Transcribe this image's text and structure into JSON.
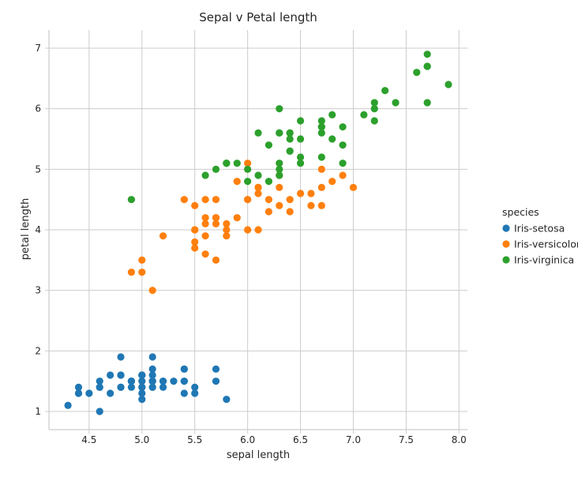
{
  "chart_data": {
    "type": "scatter",
    "title": "Sepal v Petal length",
    "xlabel": "sepal length",
    "ylabel": "petal length",
    "xlim": [
      4.12,
      8.08
    ],
    "ylim": [
      0.7,
      7.3
    ],
    "xticks": [
      4.5,
      5.0,
      5.5,
      6.0,
      6.5,
      7.0,
      7.5,
      8.0
    ],
    "xtick_labels": [
      "4.5",
      "5.0",
      "5.5",
      "6.0",
      "6.5",
      "7.0",
      "7.5",
      "8.0"
    ],
    "yticks": [
      1,
      2,
      3,
      4,
      5,
      6,
      7
    ],
    "ytick_labels": [
      "1",
      "2",
      "3",
      "4",
      "5",
      "6",
      "7"
    ],
    "grid": true,
    "legend": {
      "title": "species",
      "placement": "right"
    },
    "series": [
      {
        "name": "Iris-setosa",
        "color": "#1f77b4",
        "points": [
          [
            5.1,
            1.4
          ],
          [
            4.9,
            1.4
          ],
          [
            4.7,
            1.3
          ],
          [
            4.6,
            1.5
          ],
          [
            5.0,
            1.4
          ],
          [
            5.4,
            1.7
          ],
          [
            4.6,
            1.4
          ],
          [
            5.0,
            1.5
          ],
          [
            4.4,
            1.4
          ],
          [
            4.9,
            1.5
          ],
          [
            5.4,
            1.5
          ],
          [
            4.8,
            1.6
          ],
          [
            4.8,
            1.4
          ],
          [
            4.3,
            1.1
          ],
          [
            5.8,
            1.2
          ],
          [
            5.7,
            1.5
          ],
          [
            5.4,
            1.3
          ],
          [
            5.1,
            1.4
          ],
          [
            5.7,
            1.7
          ],
          [
            5.1,
            1.5
          ],
          [
            5.4,
            1.7
          ],
          [
            5.1,
            1.5
          ],
          [
            4.6,
            1.0
          ],
          [
            5.1,
            1.7
          ],
          [
            4.8,
            1.9
          ],
          [
            5.0,
            1.6
          ],
          [
            5.0,
            1.6
          ],
          [
            5.2,
            1.5
          ],
          [
            5.2,
            1.4
          ],
          [
            4.7,
            1.6
          ],
          [
            4.8,
            1.6
          ],
          [
            5.4,
            1.5
          ],
          [
            5.2,
            1.5
          ],
          [
            5.5,
            1.4
          ],
          [
            4.9,
            1.5
          ],
          [
            5.0,
            1.2
          ],
          [
            5.5,
            1.3
          ],
          [
            4.9,
            1.5
          ],
          [
            4.4,
            1.3
          ],
          [
            5.1,
            1.5
          ],
          [
            5.0,
            1.3
          ],
          [
            4.5,
            1.3
          ],
          [
            4.4,
            1.3
          ],
          [
            5.0,
            1.6
          ],
          [
            5.1,
            1.9
          ],
          [
            4.8,
            1.4
          ],
          [
            5.1,
            1.6
          ],
          [
            4.6,
            1.4
          ],
          [
            5.3,
            1.5
          ],
          [
            5.0,
            1.4
          ]
        ]
      },
      {
        "name": "Iris-versicolor",
        "color": "#ff7f0e",
        "points": [
          [
            7.0,
            4.7
          ],
          [
            6.4,
            4.5
          ],
          [
            6.9,
            4.9
          ],
          [
            5.5,
            4.0
          ],
          [
            6.5,
            4.6
          ],
          [
            5.7,
            4.5
          ],
          [
            6.3,
            4.7
          ],
          [
            4.9,
            3.3
          ],
          [
            6.6,
            4.6
          ],
          [
            5.2,
            3.9
          ],
          [
            5.0,
            3.5
          ],
          [
            5.9,
            4.2
          ],
          [
            6.0,
            4.0
          ],
          [
            6.1,
            4.7
          ],
          [
            5.6,
            3.6
          ],
          [
            6.7,
            4.4
          ],
          [
            5.6,
            4.5
          ],
          [
            5.8,
            4.1
          ],
          [
            6.2,
            4.5
          ],
          [
            5.6,
            3.9
          ],
          [
            5.9,
            4.8
          ],
          [
            6.1,
            4.0
          ],
          [
            6.3,
            4.9
          ],
          [
            6.1,
            4.7
          ],
          [
            6.4,
            4.3
          ],
          [
            6.6,
            4.4
          ],
          [
            6.8,
            4.8
          ],
          [
            6.7,
            5.0
          ],
          [
            6.0,
            4.5
          ],
          [
            5.7,
            3.5
          ],
          [
            5.5,
            3.8
          ],
          [
            5.5,
            3.7
          ],
          [
            5.8,
            3.9
          ],
          [
            6.0,
            5.1
          ],
          [
            5.4,
            4.5
          ],
          [
            6.0,
            4.5
          ],
          [
            6.7,
            4.7
          ],
          [
            6.3,
            4.4
          ],
          [
            5.6,
            4.1
          ],
          [
            5.5,
            4.0
          ],
          [
            5.5,
            4.4
          ],
          [
            6.1,
            4.6
          ],
          [
            5.8,
            4.0
          ],
          [
            5.0,
            3.3
          ],
          [
            5.6,
            4.2
          ],
          [
            5.7,
            4.2
          ],
          [
            5.7,
            4.2
          ],
          [
            6.2,
            4.3
          ],
          [
            5.1,
            3.0
          ],
          [
            5.7,
            4.1
          ]
        ]
      },
      {
        "name": "Iris-virginica",
        "color": "#2ca02c",
        "points": [
          [
            6.3,
            6.0
          ],
          [
            5.8,
            5.1
          ],
          [
            7.1,
            5.9
          ],
          [
            6.3,
            5.6
          ],
          [
            6.5,
            5.8
          ],
          [
            7.6,
            6.6
          ],
          [
            4.9,
            4.5
          ],
          [
            7.3,
            6.3
          ],
          [
            6.7,
            5.8
          ],
          [
            7.2,
            6.1
          ],
          [
            6.5,
            5.1
          ],
          [
            6.4,
            5.3
          ],
          [
            6.8,
            5.5
          ],
          [
            5.7,
            5.0
          ],
          [
            5.8,
            5.1
          ],
          [
            6.4,
            5.3
          ],
          [
            6.5,
            5.5
          ],
          [
            7.7,
            6.7
          ],
          [
            7.7,
            6.9
          ],
          [
            6.0,
            5.0
          ],
          [
            6.9,
            5.7
          ],
          [
            5.6,
            4.9
          ],
          [
            7.7,
            6.7
          ],
          [
            6.3,
            4.9
          ],
          [
            6.7,
            5.7
          ],
          [
            7.2,
            6.0
          ],
          [
            6.2,
            4.8
          ],
          [
            6.1,
            4.9
          ],
          [
            6.4,
            5.6
          ],
          [
            7.2,
            5.8
          ],
          [
            7.4,
            6.1
          ],
          [
            7.9,
            6.4
          ],
          [
            6.4,
            5.6
          ],
          [
            6.3,
            5.1
          ],
          [
            6.1,
            5.6
          ],
          [
            7.7,
            6.1
          ],
          [
            6.3,
            5.6
          ],
          [
            6.4,
            5.5
          ],
          [
            6.0,
            4.8
          ],
          [
            6.9,
            5.4
          ],
          [
            6.7,
            5.6
          ],
          [
            6.9,
            5.1
          ],
          [
            5.8,
            5.1
          ],
          [
            6.8,
            5.9
          ],
          [
            6.7,
            5.7
          ],
          [
            6.7,
            5.2
          ],
          [
            6.3,
            5.0
          ],
          [
            6.5,
            5.2
          ],
          [
            6.2,
            5.4
          ],
          [
            5.9,
            5.1
          ]
        ]
      }
    ]
  }
}
